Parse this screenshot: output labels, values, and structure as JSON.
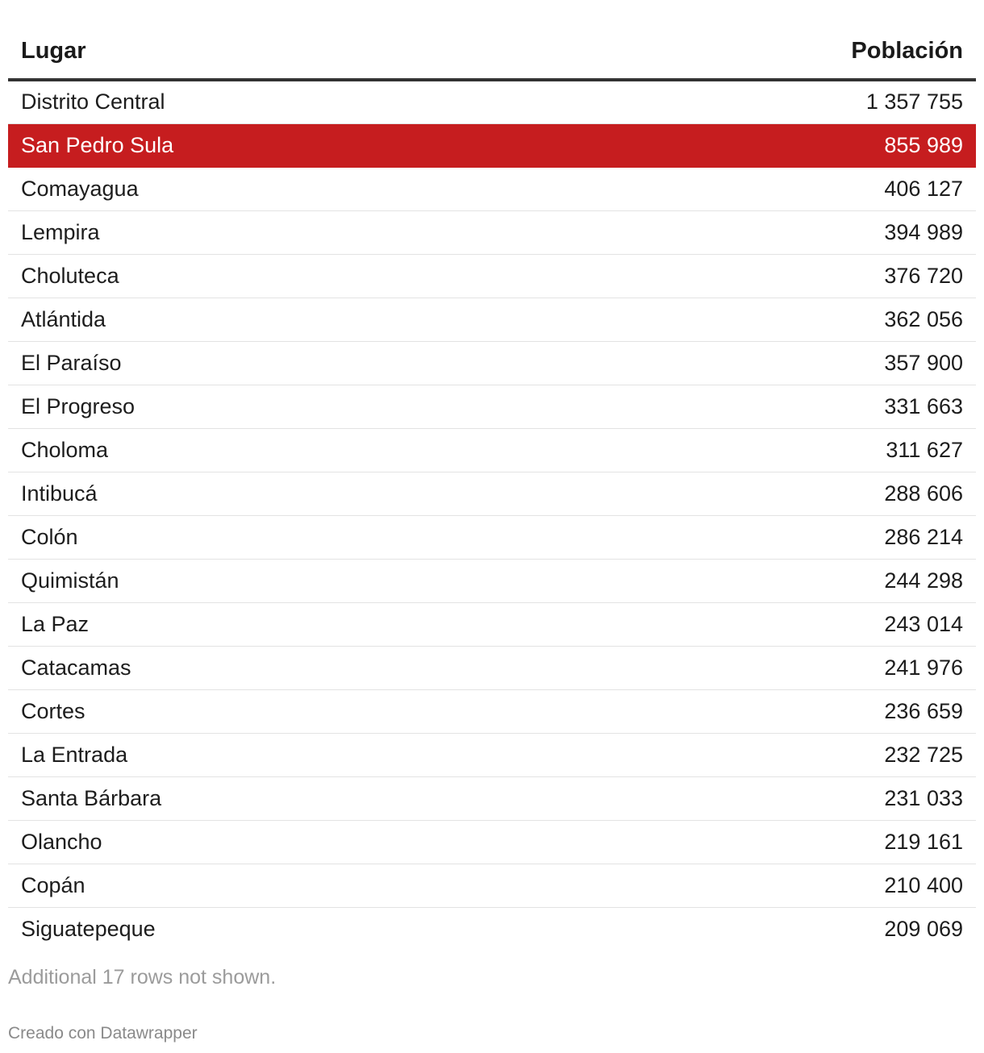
{
  "table": {
    "headers": {
      "lugar": "Lugar",
      "poblacion": "Población"
    },
    "highlight_color": "#c61d1f",
    "rows": [
      {
        "lugar": "Distrito Central",
        "poblacion": "1 357 755"
      },
      {
        "lugar": "San Pedro Sula",
        "poblacion": "855 989",
        "highlighted": true
      },
      {
        "lugar": "Comayagua",
        "poblacion": "406 127"
      },
      {
        "lugar": "Lempira",
        "poblacion": "394 989"
      },
      {
        "lugar": "Choluteca",
        "poblacion": "376 720"
      },
      {
        "lugar": "Atlántida",
        "poblacion": "362 056"
      },
      {
        "lugar": "El Paraíso",
        "poblacion": "357 900"
      },
      {
        "lugar": "El Progreso",
        "poblacion": "331 663"
      },
      {
        "lugar": "Choloma",
        "poblacion": "311 627"
      },
      {
        "lugar": "Intibucá",
        "poblacion": "288 606"
      },
      {
        "lugar": "Colón",
        "poblacion": "286 214"
      },
      {
        "lugar": "Quimistán",
        "poblacion": "244 298"
      },
      {
        "lugar": "La Paz",
        "poblacion": "243 014"
      },
      {
        "lugar": "Catacamas",
        "poblacion": "241 976"
      },
      {
        "lugar": "Cortes",
        "poblacion": "236 659"
      },
      {
        "lugar": "La Entrada",
        "poblacion": "232 725"
      },
      {
        "lugar": "Santa Bárbara",
        "poblacion": "231 033"
      },
      {
        "lugar": "Olancho",
        "poblacion": "219 161"
      },
      {
        "lugar": "Copán",
        "poblacion": "210 400"
      },
      {
        "lugar": "Siguatepeque",
        "poblacion": "209 069"
      }
    ]
  },
  "notes": "Additional 17 rows not shown.",
  "footer": "Creado con Datawrapper",
  "chart_data": {
    "type": "table",
    "columns": [
      "Lugar",
      "Población"
    ],
    "categories": [
      "Distrito Central",
      "San Pedro Sula",
      "Comayagua",
      "Lempira",
      "Choluteca",
      "Atlántida",
      "El Paraíso",
      "El Progreso",
      "Choloma",
      "Intibucá",
      "Colón",
      "Quimistán",
      "La Paz",
      "Catacamas",
      "Cortes",
      "La Entrada",
      "Santa Bárbara",
      "Olancho",
      "Copán",
      "Siguatepeque"
    ],
    "values": [
      1357755,
      855989,
      406127,
      394989,
      376720,
      362056,
      357900,
      331663,
      311627,
      288606,
      286214,
      244298,
      243014,
      241976,
      236659,
      232725,
      231033,
      219161,
      210400,
      209069
    ],
    "highlighted_row": "San Pedro Sula"
  }
}
